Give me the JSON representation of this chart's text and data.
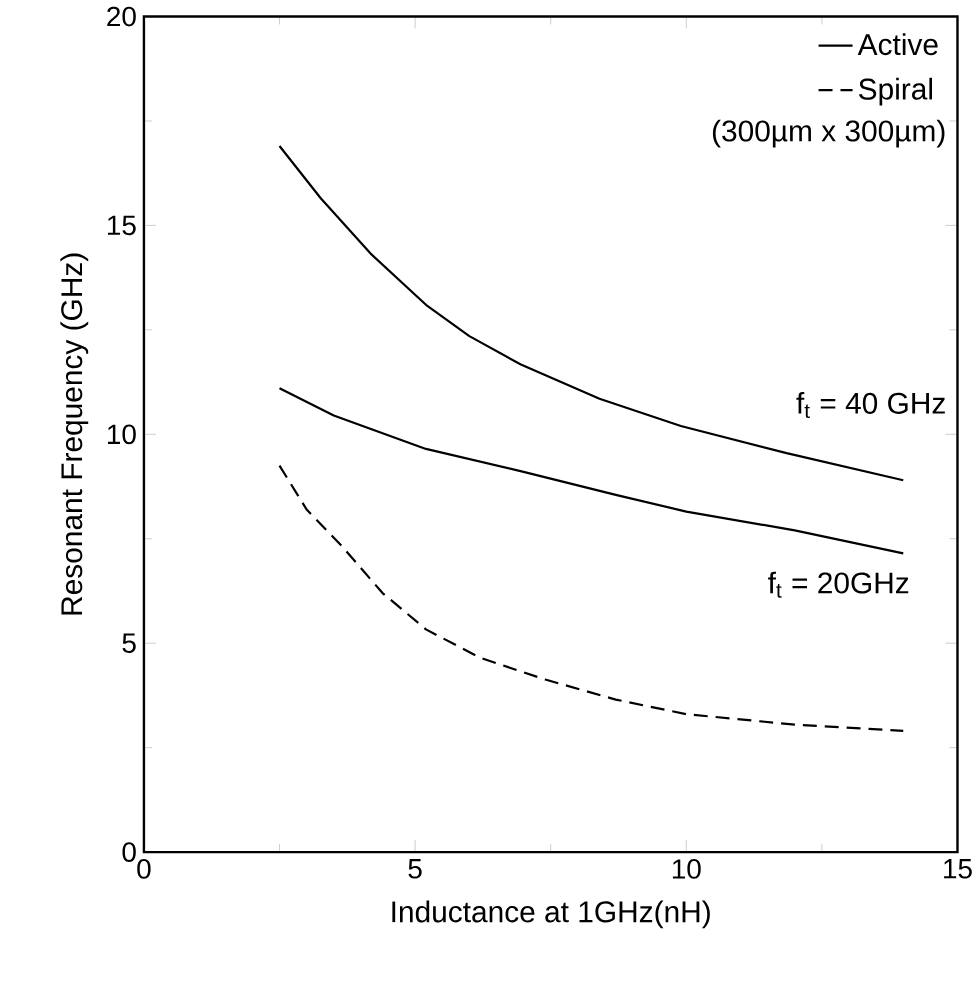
{
  "chart_data": {
    "type": "line",
    "xlabel": "Inductance at 1GHz(nH)",
    "ylabel": "Resonant Frequency (GHz)",
    "xlim": [
      0,
      15
    ],
    "ylim": [
      0,
      20
    ],
    "xticks": [
      0,
      5,
      10,
      15
    ],
    "yticks": [
      0,
      5,
      10,
      15,
      20
    ],
    "grid": false,
    "legend": "top right",
    "marker": "none",
    "series": [
      {
        "name": "Active",
        "color": "#000000",
        "line_style": "solid",
        "x": [
          2.5,
          3.26,
          4.2,
          5.2,
          6.0,
          6.95,
          8.4,
          9.9,
          11.85,
          14.0
        ],
        "values": [
          16.9,
          15.65,
          14.3,
          13.1,
          12.35,
          11.67,
          10.85,
          10.2,
          9.55,
          8.9
        ]
      },
      {
        "color": "#000000",
        "line_style": "solid",
        "x": [
          2.5,
          3.5,
          5.2,
          7.0,
          8.7,
          10.0,
          12.0,
          14.0
        ],
        "values": [
          11.1,
          10.45,
          9.65,
          9.1,
          8.55,
          8.15,
          7.7,
          7.15
        ]
      },
      {
        "name": "Spiral",
        "color": "#000000",
        "line_style": "dashed",
        "x": [
          2.5,
          3.0,
          3.63,
          4.4,
          5.2,
          6.2,
          7.4,
          8.7,
          10.0,
          12.0,
          14.0
        ],
        "values": [
          9.25,
          8.2,
          7.35,
          6.2,
          5.33,
          4.65,
          4.13,
          3.65,
          3.3,
          3.05,
          2.9
        ]
      }
    ],
    "annotations": [
      "(300µm x 300µm)",
      "f$_{t}$ = 40 GHz",
      "f$_{t}$ = 20GHz"
    ]
  }
}
